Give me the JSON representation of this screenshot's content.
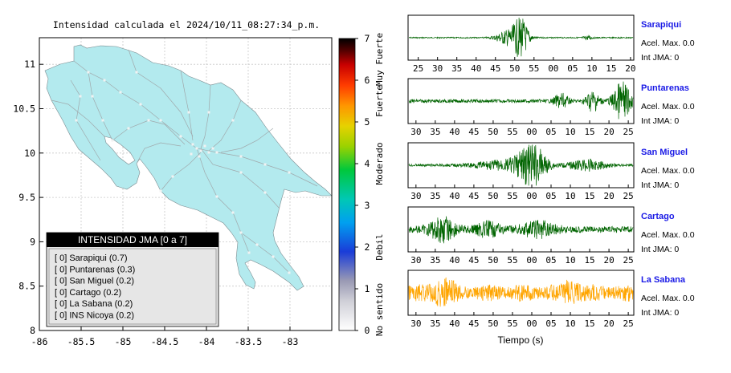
{
  "title": "Intensidad calculada el 2024/10/11_08:27:34_p.m.",
  "map": {
    "lon_ticks": [
      "-86",
      "-85.5",
      "-85",
      "-84.5",
      "-84",
      "-83.5",
      "-83"
    ],
    "lat_ticks": [
      "11",
      "10.5",
      "10",
      "9.5",
      "9",
      "8.5",
      "8"
    ],
    "xlim": [
      -86,
      -82.5
    ],
    "ylim": [
      8,
      11.3
    ],
    "land_color": "#b3eaee",
    "road_color": "#a0a8ab"
  },
  "colorbar": {
    "ticks": [
      "0",
      "1",
      "2",
      "3",
      "4",
      "5",
      "6",
      "7"
    ],
    "labels": [
      "No sentido",
      "Debil",
      "Moderado",
      "Fuerte",
      "Muy Fuerte"
    ],
    "colors": [
      "#ffffff",
      "#9a9ab4",
      "#1a3cd8",
      "#00a0f0",
      "#00c8b4",
      "#00c83c",
      "#9ad200",
      "#e6d200",
      "#ff9600",
      "#ff3c00",
      "#c80000",
      "#500000",
      "#000000"
    ]
  },
  "legend": {
    "header": "INTENSIDAD JMA [0 a 7]",
    "items": [
      "[ 0]  Sarapiqui (0.7)",
      "[ 0]  Puntarenas (0.3)",
      "[ 0]  San Miguel (0.2)",
      "[ 0]  Cartago (0.2)",
      "[ 0]  La Sabana (0.2)",
      "[ 0]  INS Nicoya (0.2)"
    ]
  },
  "waveforms": {
    "xlabel": "Tiempo (s)",
    "stations": [
      {
        "name": "Sarapiqui",
        "accel": "Acel. Max. 0.0",
        "int": "Int JMA: 0",
        "color": "#006400",
        "ticks": [
          "25",
          "30",
          "35",
          "40",
          "45",
          "50",
          "55",
          "00",
          "05",
          "10",
          "15",
          "20"
        ]
      },
      {
        "name": "Puntarenas",
        "accel": "Acel. Max. 0.0",
        "int": "Int JMA: 0",
        "color": "#006400",
        "ticks": [
          "30",
          "35",
          "40",
          "45",
          "50",
          "55",
          "00",
          "05",
          "10",
          "15",
          "20",
          "25"
        ]
      },
      {
        "name": "San Miguel",
        "accel": "Acel. Max. 0.0",
        "int": "Int JMA: 0",
        "color": "#006400",
        "ticks": [
          "30",
          "35",
          "40",
          "45",
          "50",
          "55",
          "00",
          "05",
          "10",
          "15",
          "20",
          "25"
        ]
      },
      {
        "name": "Cartago",
        "accel": "Acel. Max. 0.0",
        "int": "Int JMA: 0",
        "color": "#006400",
        "ticks": [
          "30",
          "35",
          "40",
          "45",
          "50",
          "55",
          "00",
          "05",
          "10",
          "15",
          "20",
          "25"
        ]
      },
      {
        "name": "La Sabana",
        "accel": "Acel. Max. 0.0",
        "int": "Int JMA: 0",
        "color": "#ffa500",
        "ticks": [
          "30",
          "35",
          "40",
          "45",
          "50",
          "55",
          "00",
          "05",
          "10",
          "15",
          "20",
          "25"
        ]
      }
    ]
  },
  "chart_data": [
    {
      "type": "heatmap",
      "title": "Intensidad calculada el 2024/10/11_08:27:34_p.m.",
      "xlim": [
        -86,
        -82.5
      ],
      "ylim": [
        8,
        11.3
      ],
      "colorbar_range": [
        0,
        7
      ],
      "legend": "bottom-left"
    },
    {
      "type": "line",
      "xlabel": "Tiempo (s)",
      "series": [
        {
          "name": "Sarapiqui",
          "acel_max": 0.0,
          "int_jma": 0
        },
        {
          "name": "Puntarenas",
          "acel_max": 0.0,
          "int_jma": 0
        },
        {
          "name": "San Miguel",
          "acel_max": 0.0,
          "int_jma": 0
        },
        {
          "name": "Cartago",
          "acel_max": 0.0,
          "int_jma": 0
        },
        {
          "name": "La Sabana",
          "acel_max": 0.0,
          "int_jma": 0
        }
      ]
    }
  ]
}
